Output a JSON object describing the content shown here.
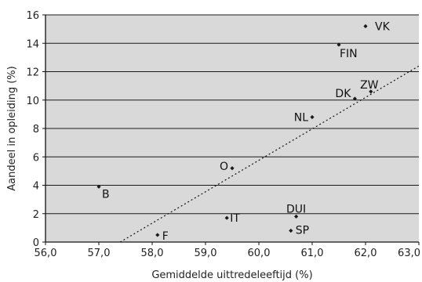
{
  "chart_data": {
    "type": "scatter",
    "title": "",
    "xlabel": "Gemiddelde uittredeleeftijd (%)",
    "ylabel": "Aandeel in opleiding (%)",
    "xlim": [
      56.0,
      63.0
    ],
    "ylim": [
      0,
      16
    ],
    "x_ticks": [
      56.0,
      57.0,
      58.0,
      59.0,
      60.0,
      61.0,
      62.0,
      63.0
    ],
    "x_tick_labels": [
      "56,0",
      "57,0",
      "58,0",
      "59,0",
      "60,0",
      "61,0",
      "62,0",
      "63,0"
    ],
    "y_ticks": [
      0,
      2,
      4,
      6,
      8,
      10,
      12,
      14,
      16
    ],
    "y_tick_labels": [
      "0",
      "2",
      "4",
      "6",
      "8",
      "10",
      "12",
      "14",
      "16"
    ],
    "grid": "horizontal",
    "points": [
      {
        "label": "VK",
        "x": 62.0,
        "y": 15.2
      },
      {
        "label": "FIN",
        "x": 61.5,
        "y": 13.9
      },
      {
        "label": "ZW",
        "x": 62.1,
        "y": 10.6
      },
      {
        "label": "DK",
        "x": 61.8,
        "y": 10.1
      },
      {
        "label": "NL",
        "x": 61.0,
        "y": 8.8
      },
      {
        "label": "O",
        "x": 59.5,
        "y": 5.2
      },
      {
        "label": "B",
        "x": 57.0,
        "y": 3.9
      },
      {
        "label": "DUI",
        "x": 60.7,
        "y": 1.8
      },
      {
        "label": "IT",
        "x": 59.4,
        "y": 1.7
      },
      {
        "label": "SP",
        "x": 60.6,
        "y": 0.8
      },
      {
        "label": "F",
        "x": 58.1,
        "y": 0.5
      }
    ],
    "trendline": {
      "style": "dotted",
      "x": [
        57.4,
        63.0
      ],
      "y": [
        0.0,
        12.4
      ]
    },
    "colors": {
      "plot_background": "#d9d9d9",
      "marker": "#1a1a1a",
      "grid": "#1a1a1a"
    }
  }
}
